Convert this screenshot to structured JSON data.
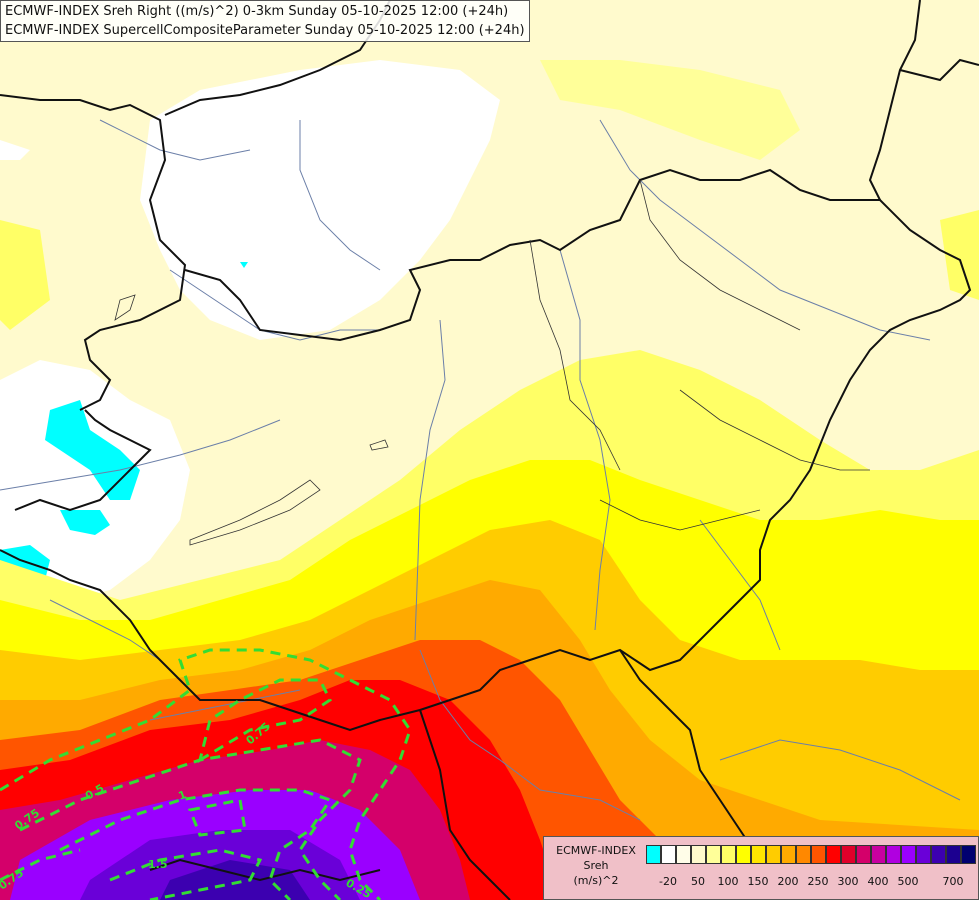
{
  "header": {
    "line1": "ECMWF-INDEX Sreh Right ((m/s)^2) 0-3km Sunday 05-10-2025 12:00 (+24h)",
    "line2": "ECMWF-INDEX SupercellCompositeParameter Sunday 05-10-2025 12:00 (+24h)"
  },
  "legend": {
    "title1": "ECMWF-INDEX",
    "title2": "Sreh",
    "title3": "(m/s)^2",
    "colors": [
      "#00ffff",
      "#ffffff",
      "#fffde8",
      "#fffacd",
      "#ffff99",
      "#ffff66",
      "#ffff00",
      "#ffe600",
      "#ffcc00",
      "#ffaa00",
      "#ff8800",
      "#ff5500",
      "#ff0000",
      "#e0002a",
      "#d4006a",
      "#c800a0",
      "#b000e0",
      "#9a00ff",
      "#6a00d8",
      "#3c00b0",
      "#1c0090",
      "#000070"
    ],
    "ticks": [
      "-20",
      "50",
      "100",
      "150",
      "200",
      "250",
      "300",
      "400",
      "500",
      "700"
    ]
  },
  "contours": {
    "color": "#33dd33",
    "labels": [
      "0.75",
      "0.5",
      "0.75",
      "1",
      "0.25",
      "1.5",
      "0.75",
      "0.25",
      "1"
    ]
  }
}
